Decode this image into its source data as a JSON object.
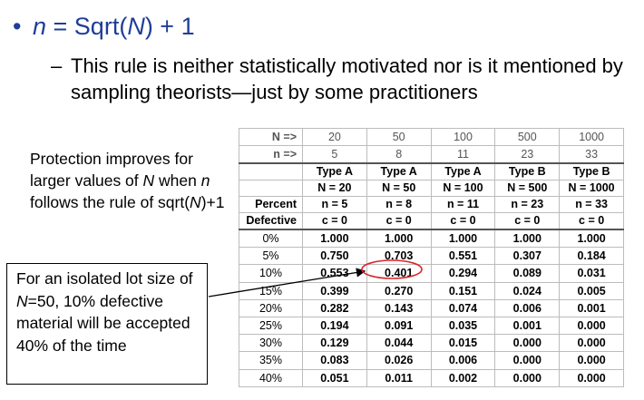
{
  "bullet": {
    "n": "n",
    "eq1": " = Sqrt(",
    "N": "N",
    "eq2": ") + 1"
  },
  "sub_bullet": {
    "dash": "–",
    "text": "This rule is neither statistically motivated nor is it mentioned by sampling theorists—just by some practitioners"
  },
  "note": {
    "p1": "Protection improves for larger values of ",
    "N": "N",
    "p2": " when ",
    "n": "n",
    "p3": " follows the rule of sqrt(",
    "N2": "N",
    "p4": ")+1"
  },
  "callout": {
    "p1": "For an isolated lot size of ",
    "N": "N",
    "p2": "=50, 10% defective material will be accepted 40% of the time"
  },
  "table": {
    "N_label": "N =>",
    "N_values": [
      "20",
      "50",
      "100",
      "500",
      "1000"
    ],
    "n_label": "n =>",
    "n_values": [
      "5",
      "8",
      "11",
      "23",
      "33"
    ],
    "types": [
      "Type A",
      "Type A",
      "Type A",
      "Type B",
      "Type B"
    ],
    "N_eq": [
      "N = 20",
      "N = 50",
      "N = 100",
      "N = 500",
      "N = 1000"
    ],
    "n_eq": [
      "n = 5",
      "n = 8",
      "n = 11",
      "n = 23",
      "n = 33"
    ],
    "c_eq": [
      "c = 0",
      "c = 0",
      "c = 0",
      "c = 0",
      "c = 0"
    ],
    "percent_label": "Percent",
    "defective_label": "Defective",
    "rows": [
      {
        "pct": "0%",
        "vals": [
          "1.000",
          "1.000",
          "1.000",
          "1.000",
          "1.000"
        ]
      },
      {
        "pct": "5%",
        "vals": [
          "0.750",
          "0.703",
          "0.551",
          "0.307",
          "0.184"
        ]
      },
      {
        "pct": "10%",
        "vals": [
          "0.553",
          "0.401",
          "0.294",
          "0.089",
          "0.031"
        ]
      },
      {
        "pct": "15%",
        "vals": [
          "0.399",
          "0.270",
          "0.151",
          "0.024",
          "0.005"
        ]
      },
      {
        "pct": "20%",
        "vals": [
          "0.282",
          "0.143",
          "0.074",
          "0.006",
          "0.001"
        ]
      },
      {
        "pct": "25%",
        "vals": [
          "0.194",
          "0.091",
          "0.035",
          "0.001",
          "0.000"
        ]
      },
      {
        "pct": "30%",
        "vals": [
          "0.129",
          "0.044",
          "0.015",
          "0.000",
          "0.000"
        ]
      },
      {
        "pct": "35%",
        "vals": [
          "0.083",
          "0.026",
          "0.006",
          "0.000",
          "0.000"
        ]
      },
      {
        "pct": "40%",
        "vals": [
          "0.051",
          "0.011",
          "0.002",
          "0.000",
          "0.000"
        ]
      }
    ]
  },
  "colors": {
    "bullet": "#1f3d99",
    "highlight_circle": "#d9262b"
  }
}
